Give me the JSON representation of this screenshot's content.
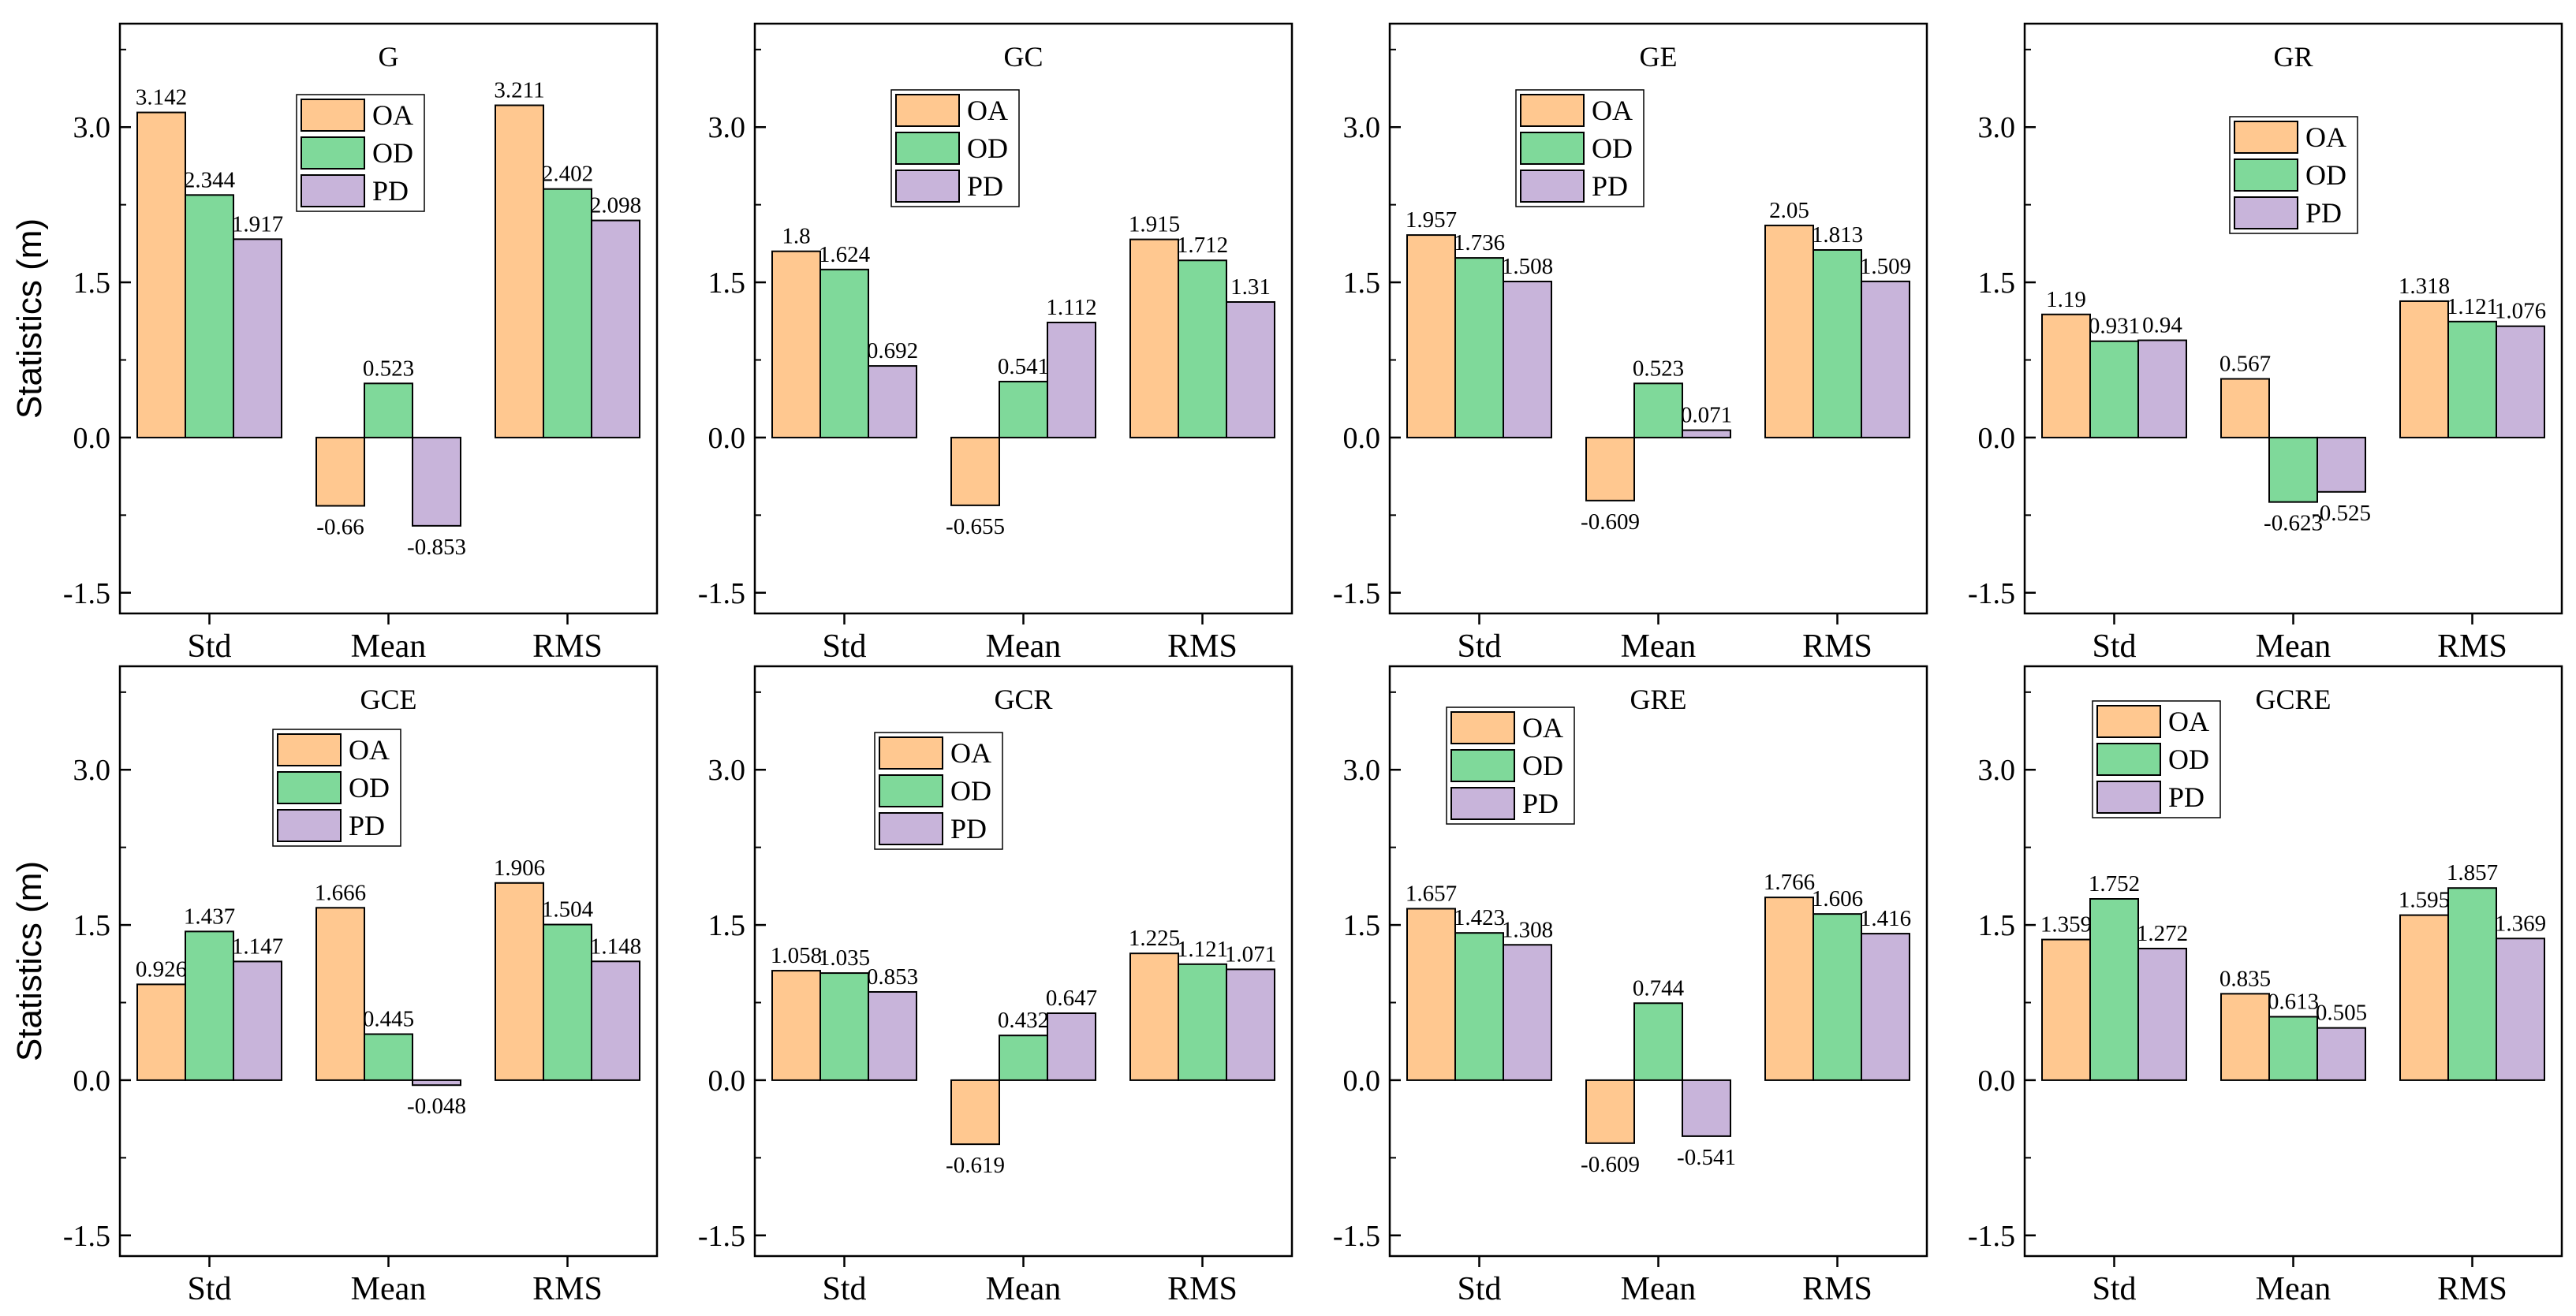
{
  "chart_data": [
    {
      "type": "bar",
      "title": "G",
      "categories": [
        "Std",
        "Mean",
        "RMS"
      ],
      "series": [
        {
          "name": "OA",
          "values": [
            3.142,
            -0.66,
            3.211
          ]
        },
        {
          "name": "OD",
          "values": [
            2.344,
            0.523,
            2.402
          ]
        },
        {
          "name": "PD",
          "values": [
            1.917,
            -0.853,
            2.098
          ]
        }
      ],
      "ylim": [
        -1.7,
        4.0
      ],
      "yticks": [
        -1.5,
        0.0,
        1.5,
        3.0
      ],
      "ylabel": "Statistics (m)",
      "legend": "top-center"
    },
    {
      "type": "bar",
      "title": "GC",
      "categories": [
        "Std",
        "Mean",
        "RMS"
      ],
      "series": [
        {
          "name": "OA",
          "values": [
            1.8,
            -0.655,
            1.915
          ]
        },
        {
          "name": "OD",
          "values": [
            1.624,
            0.541,
            1.712
          ]
        },
        {
          "name": "PD",
          "values": [
            0.692,
            1.112,
            1.31
          ]
        }
      ],
      "ylim": [
        -1.7,
        4.0
      ],
      "yticks": [
        -1.5,
        0.0,
        1.5,
        3.0
      ],
      "ylabel": "",
      "legend": "top-center"
    },
    {
      "type": "bar",
      "title": "GE",
      "categories": [
        "Std",
        "Mean",
        "RMS"
      ],
      "series": [
        {
          "name": "OA",
          "values": [
            1.957,
            -0.609,
            2.05
          ]
        },
        {
          "name": "OD",
          "values": [
            1.736,
            0.523,
            1.813
          ]
        },
        {
          "name": "PD",
          "values": [
            1.508,
            0.071,
            1.509
          ]
        }
      ],
      "ylim": [
        -1.7,
        4.0
      ],
      "yticks": [
        -1.5,
        0.0,
        1.5,
        3.0
      ],
      "ylabel": "",
      "legend": "top-center"
    },
    {
      "type": "bar",
      "title": "GR",
      "categories": [
        "Std",
        "Mean",
        "RMS"
      ],
      "series": [
        {
          "name": "OA",
          "values": [
            1.19,
            0.567,
            1.318
          ]
        },
        {
          "name": "OD",
          "values": [
            0.931,
            -0.623,
            1.121
          ]
        },
        {
          "name": "PD",
          "values": [
            0.94,
            -0.525,
            1.076
          ]
        }
      ],
      "ylim": [
        -1.7,
        4.0
      ],
      "yticks": [
        -1.5,
        0.0,
        1.5,
        3.0
      ],
      "ylabel": "",
      "legend": "top-center"
    },
    {
      "type": "bar",
      "title": "GCE",
      "categories": [
        "Std",
        "Mean",
        "RMS"
      ],
      "series": [
        {
          "name": "OA",
          "values": [
            0.926,
            1.666,
            1.906
          ]
        },
        {
          "name": "OD",
          "values": [
            1.437,
            0.445,
            1.504
          ]
        },
        {
          "name": "PD",
          "values": [
            1.147,
            -0.048,
            1.148
          ]
        }
      ],
      "ylim": [
        -1.7,
        4.0
      ],
      "yticks": [
        -1.5,
        0.0,
        1.5,
        3.0
      ],
      "ylabel": "Statistics (m)",
      "legend": "top-center"
    },
    {
      "type": "bar",
      "title": "GCR",
      "categories": [
        "Std",
        "Mean",
        "RMS"
      ],
      "series": [
        {
          "name": "OA",
          "values": [
            1.058,
            -0.619,
            1.225
          ]
        },
        {
          "name": "OD",
          "values": [
            1.035,
            0.432,
            1.121
          ]
        },
        {
          "name": "PD",
          "values": [
            0.853,
            0.647,
            1.071
          ]
        }
      ],
      "ylim": [
        -1.7,
        4.0
      ],
      "yticks": [
        -1.5,
        0.0,
        1.5,
        3.0
      ],
      "ylabel": "",
      "legend": "top-center"
    },
    {
      "type": "bar",
      "title": "GRE",
      "categories": [
        "Std",
        "Mean",
        "RMS"
      ],
      "series": [
        {
          "name": "OA",
          "values": [
            1.657,
            -0.609,
            1.766
          ]
        },
        {
          "name": "OD",
          "values": [
            1.423,
            0.744,
            1.606
          ]
        },
        {
          "name": "PD",
          "values": [
            1.308,
            -0.541,
            1.416
          ]
        }
      ],
      "ylim": [
        -1.7,
        4.0
      ],
      "yticks": [
        -1.5,
        0.0,
        1.5,
        3.0
      ],
      "ylabel": "",
      "legend": "top-left"
    },
    {
      "type": "bar",
      "title": "GCRE",
      "categories": [
        "Std",
        "Mean",
        "RMS"
      ],
      "series": [
        {
          "name": "OA",
          "values": [
            1.359,
            0.835,
            1.595
          ]
        },
        {
          "name": "OD",
          "values": [
            1.752,
            0.613,
            1.857
          ]
        },
        {
          "name": "PD",
          "values": [
            1.272,
            0.505,
            1.369
          ]
        }
      ],
      "ylim": [
        -1.7,
        4.0
      ],
      "yticks": [
        -1.5,
        0.0,
        1.5,
        3.0
      ],
      "ylabel": "",
      "legend": "top-left"
    }
  ],
  "colors": {
    "OA": "#FFC890",
    "OD": "#7FD99A",
    "PD": "#C8B4DA"
  }
}
